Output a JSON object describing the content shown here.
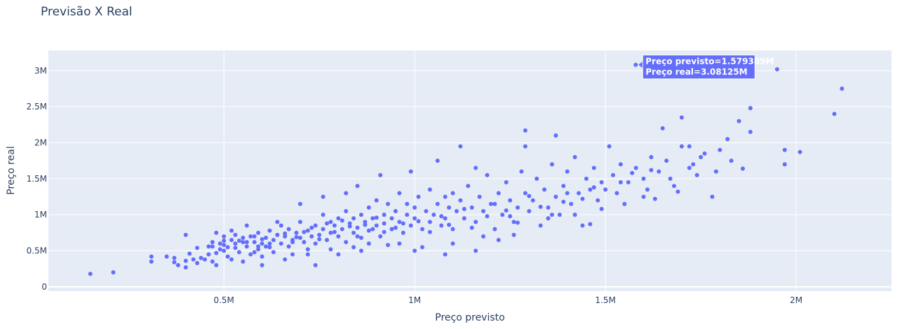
{
  "chart_data": {
    "type": "scatter",
    "title": "Previsão X Real",
    "xlabel": "Preço previsto",
    "ylabel": "Preço real",
    "xlim": [
      40000,
      2250000
    ],
    "ylim": [
      -60000,
      3280000
    ],
    "x_ticks": [
      500000,
      1000000,
      1500000,
      2000000
    ],
    "x_tick_labels": [
      "0.5M",
      "1M",
      "1.5M",
      "2M"
    ],
    "y_ticks": [
      0,
      500000,
      1000000,
      1500000,
      2000000,
      2500000,
      3000000
    ],
    "y_tick_labels": [
      "0",
      "0.5M",
      "1M",
      "1.5M",
      "2M",
      "2.5M",
      "3M"
    ],
    "grid": true,
    "marker_color": "#636efa",
    "plot_background": "#e5ecf6",
    "hover": {
      "x": 1579389,
      "y": 3081250,
      "label_x": "Preço previsto=1.579389M",
      "label_y": "Preço real=3.08125M"
    },
    "points": [
      [
        150000,
        180000
      ],
      [
        210000,
        200000
      ],
      [
        310000,
        350000
      ],
      [
        310000,
        420000
      ],
      [
        350000,
        420000
      ],
      [
        370000,
        400000
      ],
      [
        370000,
        340000
      ],
      [
        380000,
        300000
      ],
      [
        400000,
        270000
      ],
      [
        400000,
        360000
      ],
      [
        400000,
        720000
      ],
      [
        410000,
        460000
      ],
      [
        420000,
        380000
      ],
      [
        430000,
        330000
      ],
      [
        440000,
        400000
      ],
      [
        450000,
        380000
      ],
      [
        460000,
        560000
      ],
      [
        470000,
        620000
      ],
      [
        470000,
        350000
      ],
      [
        480000,
        470000
      ],
      [
        480000,
        300000
      ],
      [
        490000,
        520000
      ],
      [
        490000,
        600000
      ],
      [
        500000,
        700000
      ],
      [
        500000,
        500000
      ],
      [
        510000,
        420000
      ],
      [
        510000,
        550000
      ],
      [
        520000,
        650000
      ],
      [
        520000,
        380000
      ],
      [
        530000,
        600000
      ],
      [
        530000,
        720000
      ],
      [
        540000,
        480000
      ],
      [
        550000,
        620000
      ],
      [
        550000,
        350000
      ],
      [
        560000,
        560000
      ],
      [
        570000,
        700000
      ],
      [
        570000,
        450000
      ],
      [
        580000,
        620000
      ],
      [
        590000,
        520000
      ],
      [
        590000,
        750000
      ],
      [
        600000,
        600000
      ],
      [
        600000,
        420000
      ],
      [
        610000,
        680000
      ],
      [
        620000,
        550000
      ],
      [
        620000,
        780000
      ],
      [
        630000,
        650000
      ],
      [
        630000,
        480000
      ],
      [
        640000,
        720000
      ],
      [
        650000,
        600000
      ],
      [
        650000,
        850000
      ],
      [
        660000,
        700000
      ],
      [
        670000,
        560000
      ],
      [
        670000,
        800000
      ],
      [
        680000,
        650000
      ],
      [
        680000,
        450000
      ],
      [
        690000,
        750000
      ],
      [
        700000,
        680000
      ],
      [
        700000,
        900000
      ],
      [
        710000,
        620000
      ],
      [
        720000,
        780000
      ],
      [
        720000,
        520000
      ],
      [
        730000,
        700000
      ],
      [
        740000,
        850000
      ],
      [
        740000,
        600000
      ],
      [
        750000,
        720000
      ],
      [
        760000,
        800000
      ],
      [
        760000,
        1000000
      ],
      [
        770000,
        650000
      ],
      [
        780000,
        750000
      ],
      [
        780000,
        900000
      ],
      [
        790000,
        850000
      ],
      [
        800000,
        700000
      ],
      [
        800000,
        950000
      ],
      [
        810000,
        800000
      ],
      [
        820000,
        1050000
      ],
      [
        820000,
        620000
      ],
      [
        830000,
        880000
      ],
      [
        840000,
        750000
      ],
      [
        840000,
        950000
      ],
      [
        850000,
        820000
      ],
      [
        860000,
        1000000
      ],
      [
        860000,
        680000
      ],
      [
        870000,
        900000
      ],
      [
        880000,
        1100000
      ],
      [
        880000,
        780000
      ],
      [
        890000,
        950000
      ],
      [
        900000,
        850000
      ],
      [
        900000,
        1200000
      ],
      [
        910000,
        700000
      ],
      [
        920000,
        1000000
      ],
      [
        920000,
        880000
      ],
      [
        930000,
        1150000
      ],
      [
        940000,
        800000
      ],
      [
        940000,
        950000
      ],
      [
        950000,
        1050000
      ],
      [
        960000,
        900000
      ],
      [
        960000,
        1300000
      ],
      [
        970000,
        750000
      ],
      [
        980000,
        1000000
      ],
      [
        980000,
        1150000
      ],
      [
        990000,
        850000
      ],
      [
        1000000,
        1100000
      ],
      [
        1000000,
        950000
      ],
      [
        1010000,
        1250000
      ],
      [
        1020000,
        800000
      ],
      [
        1030000,
        1050000
      ],
      [
        1040000,
        900000
      ],
      [
        1040000,
        1350000
      ],
      [
        1050000,
        1000000
      ],
      [
        1060000,
        1150000
      ],
      [
        1070000,
        850000
      ],
      [
        1080000,
        1250000
      ],
      [
        1080000,
        950000
      ],
      [
        1090000,
        1100000
      ],
      [
        1100000,
        1300000
      ],
      [
        1100000,
        800000
      ],
      [
        1110000,
        1050000
      ],
      [
        1120000,
        1200000
      ],
      [
        1130000,
        950000
      ],
      [
        1140000,
        1400000
      ],
      [
        1150000,
        1100000
      ],
      [
        1160000,
        900000
      ],
      [
        1170000,
        1250000
      ],
      [
        1180000,
        1050000
      ],
      [
        1190000,
        1550000
      ],
      [
        1200000,
        1150000
      ],
      [
        1210000,
        800000
      ],
      [
        1220000,
        1300000
      ],
      [
        1230000,
        1000000
      ],
      [
        1240000,
        1450000
      ],
      [
        1250000,
        1200000
      ],
      [
        1260000,
        900000
      ],
      [
        1270000,
        1100000
      ],
      [
        1280000,
        1600000
      ],
      [
        1290000,
        1300000
      ],
      [
        1300000,
        1050000
      ],
      [
        1310000,
        1200000
      ],
      [
        1320000,
        1500000
      ],
      [
        1330000,
        850000
      ],
      [
        1340000,
        1350000
      ],
      [
        1350000,
        1100000
      ],
      [
        1360000,
        1700000
      ],
      [
        1370000,
        1250000
      ],
      [
        1380000,
        1000000
      ],
      [
        1390000,
        1400000
      ],
      [
        1400000,
        1600000
      ],
      [
        1410000,
        1150000
      ],
      [
        1420000,
        1800000
      ],
      [
        1430000,
        1300000
      ],
      [
        1440000,
        850000
      ],
      [
        1450000,
        1500000
      ],
      [
        1460000,
        1350000
      ],
      [
        1470000,
        1650000
      ],
      [
        1480000,
        1200000
      ],
      [
        1490000,
        1450000
      ],
      [
        1500000,
        1350000
      ],
      [
        1520000,
        1550000
      ],
      [
        1540000,
        1700000
      ],
      [
        1560000,
        1450000
      ],
      [
        1580000,
        1650000
      ],
      [
        1579389,
        3081250
      ],
      [
        1600000,
        1500000
      ],
      [
        1620000,
        1800000
      ],
      [
        1640000,
        1600000
      ],
      [
        1660000,
        1750000
      ],
      [
        1680000,
        1400000
      ],
      [
        1700000,
        1950000
      ],
      [
        1720000,
        1650000
      ],
      [
        1740000,
        1550000
      ],
      [
        1760000,
        1850000
      ],
      [
        1780000,
        1250000
      ],
      [
        1800000,
        1900000
      ],
      [
        1820000,
        2050000
      ],
      [
        1850000,
        2300000
      ],
      [
        1880000,
        2150000
      ],
      [
        1880000,
        2480000
      ],
      [
        1950000,
        3020000
      ],
      [
        1970000,
        1900000
      ],
      [
        1970000,
        1700000
      ],
      [
        2010000,
        1870000
      ],
      [
        2100000,
        2400000
      ],
      [
        2120000,
        2750000
      ],
      [
        1290000,
        2170000
      ],
      [
        1370000,
        2100000
      ],
      [
        1290000,
        1950000
      ],
      [
        1510000,
        1950000
      ],
      [
        1650000,
        2200000
      ],
      [
        1700000,
        2350000
      ],
      [
        1720000,
        1950000
      ],
      [
        1540000,
        1450000
      ],
      [
        1620000,
        1620000
      ],
      [
        1600000,
        1250000
      ],
      [
        1400000,
        1300000
      ],
      [
        1420000,
        1000000
      ],
      [
        1460000,
        870000
      ],
      [
        1350000,
        950000
      ],
      [
        1250000,
        980000
      ],
      [
        1160000,
        1650000
      ],
      [
        1060000,
        1750000
      ],
      [
        1120000,
        1950000
      ],
      [
        990000,
        1600000
      ],
      [
        910000,
        1550000
      ],
      [
        850000,
        1400000
      ],
      [
        820000,
        1300000
      ],
      [
        760000,
        1250000
      ],
      [
        700000,
        1150000
      ],
      [
        640000,
        900000
      ],
      [
        560000,
        850000
      ],
      [
        520000,
        780000
      ],
      [
        480000,
        750000
      ],
      [
        600000,
        300000
      ],
      [
        660000,
        380000
      ],
      [
        740000,
        300000
      ],
      [
        800000,
        450000
      ],
      [
        860000,
        500000
      ],
      [
        960000,
        600000
      ],
      [
        1020000,
        550000
      ],
      [
        1100000,
        600000
      ],
      [
        1180000,
        700000
      ],
      [
        1220000,
        650000
      ],
      [
        1260000,
        720000
      ],
      [
        1160000,
        500000
      ],
      [
        1080000,
        450000
      ],
      [
        1000000,
        500000
      ],
      [
        930000,
        580000
      ],
      [
        880000,
        600000
      ],
      [
        840000,
        550000
      ],
      [
        780000,
        520000
      ],
      [
        720000,
        450000
      ],
      [
        680000,
        620000
      ],
      [
        610000,
        560000
      ],
      [
        580000,
        480000
      ],
      [
        540000,
        640000
      ],
      [
        500000,
        580000
      ],
      [
        460000,
        450000
      ],
      [
        430000,
        540000
      ],
      [
        890000,
        800000
      ],
      [
        920000,
        760000
      ],
      [
        950000,
        820000
      ],
      [
        970000,
        880000
      ],
      [
        1010000,
        910000
      ],
      [
        1040000,
        760000
      ],
      [
        1070000,
        980000
      ],
      [
        1090000,
        860000
      ],
      [
        1130000,
        1080000
      ],
      [
        1150000,
        820000
      ],
      [
        1190000,
        980000
      ],
      [
        1210000,
        1150000
      ],
      [
        1240000,
        1060000
      ],
      [
        1270000,
        890000
      ],
      [
        1300000,
        1260000
      ],
      [
        1330000,
        1110000
      ],
      [
        1360000,
        1000000
      ],
      [
        1390000,
        1180000
      ],
      [
        1440000,
        1220000
      ],
      [
        1470000,
        1380000
      ],
      [
        1490000,
        1080000
      ],
      [
        1530000,
        1300000
      ],
      [
        1550000,
        1150000
      ],
      [
        1570000,
        1580000
      ],
      [
        1610000,
        1350000
      ],
      [
        1630000,
        1220000
      ],
      [
        1670000,
        1500000
      ],
      [
        1690000,
        1320000
      ],
      [
        1730000,
        1700000
      ],
      [
        1750000,
        1800000
      ],
      [
        1790000,
        1600000
      ],
      [
        1830000,
        1750000
      ],
      [
        1860000,
        1640000
      ],
      [
        660000,
        740000
      ],
      [
        690000,
        690000
      ],
      [
        710000,
        760000
      ],
      [
        730000,
        820000
      ],
      [
        750000,
        660000
      ],
      [
        770000,
        880000
      ],
      [
        790000,
        760000
      ],
      [
        810000,
        920000
      ],
      [
        830000,
        840000
      ],
      [
        850000,
        700000
      ],
      [
        870000,
        860000
      ],
      [
        900000,
        960000
      ],
      [
        560000,
        620000
      ],
      [
        580000,
        700000
      ],
      [
        600000,
        660000
      ],
      [
        620000,
        600000
      ],
      [
        640000,
        720000
      ],
      [
        590000,
        560000
      ],
      [
        550000,
        680000
      ],
      [
        530000,
        540000
      ],
      [
        500000,
        640000
      ],
      [
        470000,
        560000
      ]
    ]
  }
}
